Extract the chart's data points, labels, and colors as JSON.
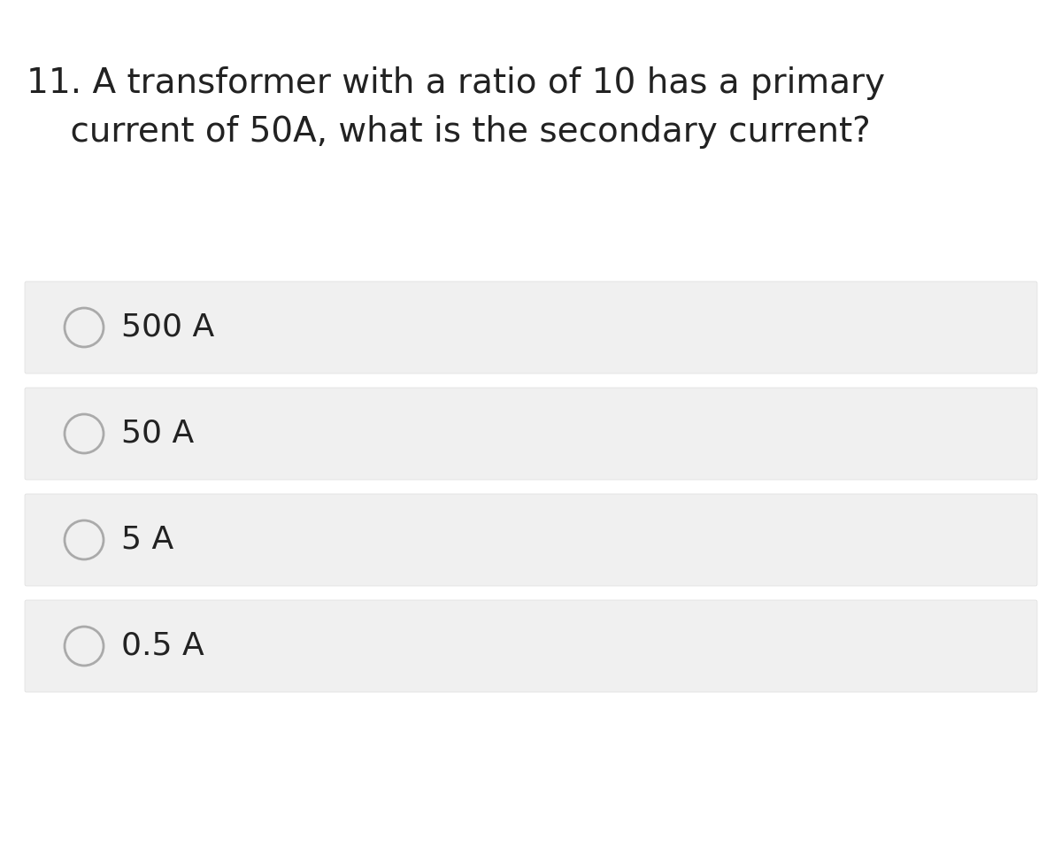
{
  "background_color": "#ffffff",
  "question_text_line1": "11. A transformer with a ratio of 10 has a primary",
  "question_text_line2": "    current of 50A, what is the secondary current?",
  "options": [
    "500 A",
    "50 A",
    "5 A",
    "0.5 A"
  ],
  "option_box_color": "#f0f0f0",
  "option_text_color": "#222222",
  "question_text_color": "#222222",
  "circle_edge_color": "#aaaaaa",
  "circle_fill_color": "#f0f0f0",
  "option_box_border_color": "#dddddd",
  "question_fontsize": 28,
  "option_fontsize": 26
}
